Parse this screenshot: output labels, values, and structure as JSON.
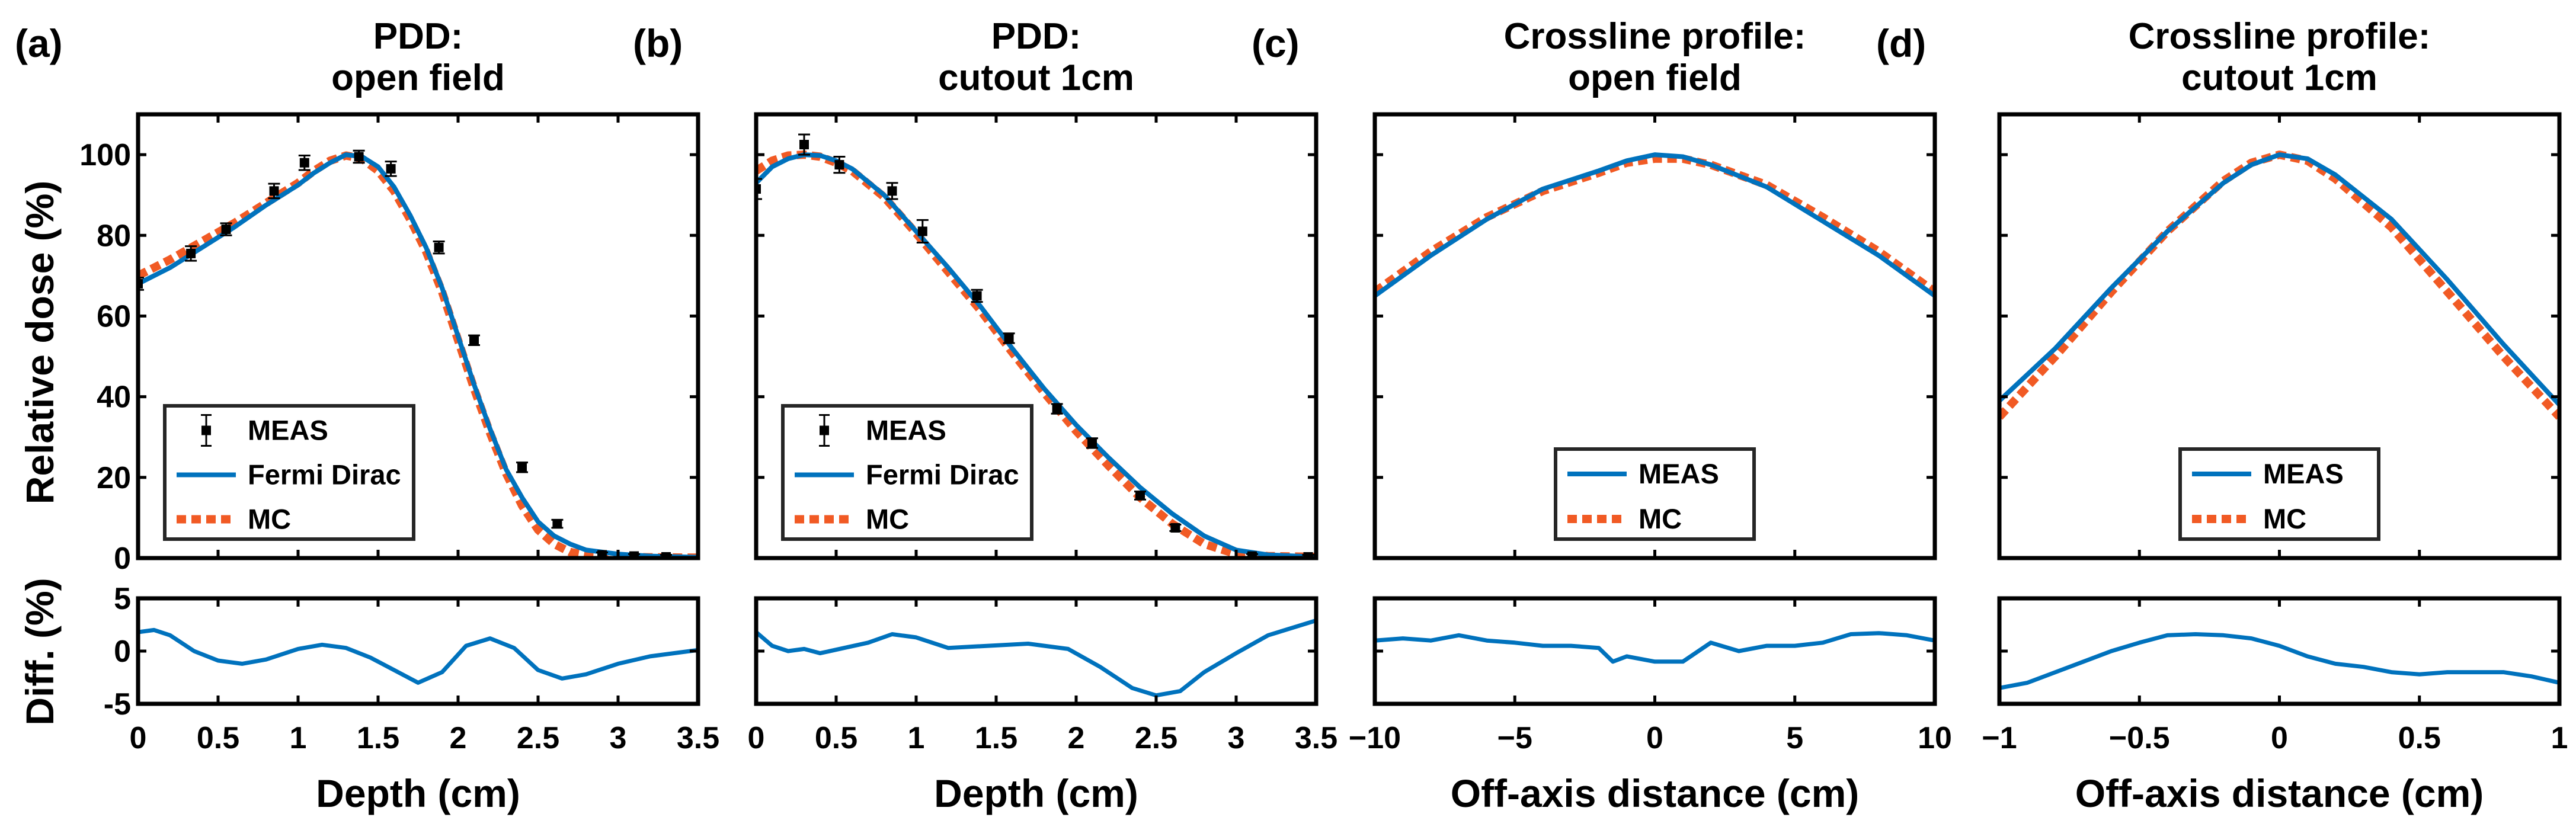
{
  "colors": {
    "fermi": "#0072BD",
    "mc": "#F15A24",
    "meas": "#000000"
  },
  "y_label_main": "Relative dose (%)",
  "y_label_diff": "Diff. (%)",
  "chart_data": [
    {
      "type": "line",
      "letter": "(a)",
      "title": [
        "PDD:",
        "open field"
      ],
      "xlabel": "Depth (cm)",
      "xlim": [
        0,
        3.5
      ],
      "xticks": [
        0,
        0.5,
        1,
        1.5,
        2,
        2.5,
        3,
        3.5
      ],
      "xtick_labels": [
        "0",
        "0.5",
        "1",
        "1.5",
        "2",
        "2.5",
        "3",
        "3.5"
      ],
      "ylim": [
        0,
        110
      ],
      "yticks": [
        0,
        20,
        40,
        60,
        80,
        100
      ],
      "ytick_labels": [
        "0",
        "20",
        "40",
        "60",
        "80",
        "100"
      ],
      "diff_ylim": [
        -5,
        5
      ],
      "diff_yticks": [
        -5,
        0,
        5
      ],
      "diff_ytick_labels": [
        "-5",
        "0",
        "5"
      ],
      "legend": {
        "position": "lower-left",
        "entries": [
          "MEAS",
          "Fermi Dirac",
          "MC"
        ]
      },
      "series": [
        {
          "name": "Fermi Dirac",
          "x": [
            0,
            0.2,
            0.4,
            0.6,
            0.8,
            1,
            1.1,
            1.2,
            1.3,
            1.4,
            1.5,
            1.6,
            1.7,
            1.8,
            1.9,
            2,
            2.1,
            2.2,
            2.3,
            2.4,
            2.5,
            2.6,
            2.7,
            2.8,
            2.9,
            3,
            3.2,
            3.5
          ],
          "y": [
            68,
            72,
            77,
            82,
            87.5,
            92.5,
            95.5,
            98,
            100,
            99.5,
            97,
            92,
            85,
            77,
            67,
            55,
            43,
            32,
            22,
            15,
            9,
            5.5,
            3.5,
            2,
            1.5,
            1,
            0.5,
            0.2
          ]
        },
        {
          "name": "MC",
          "x": [
            0,
            0.2,
            0.4,
            0.6,
            0.8,
            1,
            1.1,
            1.2,
            1.3,
            1.4,
            1.5,
            1.6,
            1.7,
            1.8,
            1.9,
            2,
            2.1,
            2.2,
            2.3,
            2.4,
            2.5,
            2.6,
            2.7,
            2.8,
            2.9,
            3,
            3.2,
            3.5
          ],
          "y": [
            70,
            74,
            78.5,
            83,
            88,
            93,
            96,
            98.5,
            99.8,
            99,
            96,
            91,
            84,
            76,
            66,
            54,
            42,
            31,
            21,
            13,
            7,
            3.5,
            1.5,
            0.8,
            0.5,
            0.3,
            0.2,
            0.1
          ]
        },
        {
          "name": "MEAS",
          "x": [
            0,
            0.33,
            0.55,
            0.85,
            1.04,
            1.38,
            1.58,
            1.88,
            2.1,
            2.4,
            2.62,
            2.9,
            3.1,
            3.3
          ],
          "y": [
            68,
            75.5,
            81.5,
            91,
            98,
            99.5,
            96.5,
            77,
            54,
            22.5,
            8.5,
            0.8,
            0.5,
            0.3
          ],
          "err": [
            1.5,
            1.8,
            1.5,
            1.8,
            1.8,
            1.5,
            1.8,
            1.5,
            1.2,
            1.2,
            1,
            0.6,
            0.5,
            0.5
          ]
        }
      ],
      "diff": {
        "name": "Diff",
        "x": [
          0,
          0.1,
          0.2,
          0.35,
          0.5,
          0.65,
          0.8,
          1,
          1.15,
          1.3,
          1.45,
          1.6,
          1.75,
          1.9,
          2.05,
          2.2,
          2.35,
          2.5,
          2.65,
          2.8,
          3,
          3.2,
          3.5
        ],
        "y": [
          1.8,
          2,
          1.5,
          0,
          -0.9,
          -1.2,
          -0.8,
          0.2,
          0.6,
          0.3,
          -0.6,
          -1.8,
          -3,
          -2,
          0.5,
          1.2,
          0.3,
          -1.8,
          -2.6,
          -2.2,
          -1.2,
          -0.5,
          0.1
        ]
      }
    },
    {
      "type": "line",
      "letter": "(b)",
      "title": [
        "PDD:",
        "cutout 1cm"
      ],
      "xlabel": "Depth (cm)",
      "xlim": [
        0,
        3.5
      ],
      "xticks": [
        0,
        0.5,
        1,
        1.5,
        2,
        2.5,
        3,
        3.5
      ],
      "xtick_labels": [
        "0",
        "0.5",
        "1",
        "1.5",
        "2",
        "2.5",
        "3",
        "3.5"
      ],
      "ylim": [
        0,
        110
      ],
      "yticks": [
        0,
        20,
        40,
        60,
        80,
        100
      ],
      "ytick_labels": [],
      "diff_ylim": [
        -5,
        5
      ],
      "diff_yticks": [
        -5,
        0,
        5
      ],
      "diff_ytick_labels": [],
      "legend": {
        "position": "lower-left",
        "entries": [
          "MEAS",
          "Fermi Dirac",
          "MC"
        ]
      },
      "series": [
        {
          "name": "Fermi Dirac",
          "x": [
            0,
            0.1,
            0.2,
            0.3,
            0.4,
            0.5,
            0.6,
            0.8,
            1,
            1.2,
            1.4,
            1.6,
            1.8,
            2,
            2.2,
            2.4,
            2.6,
            2.8,
            3,
            3.2,
            3.5
          ],
          "y": [
            93,
            97,
            99,
            100,
            99.8,
            98.5,
            96.5,
            90,
            81,
            72,
            62.5,
            52,
            42,
            33,
            25,
            17.5,
            11,
            5.5,
            2,
            0.8,
            0.3
          ]
        },
        {
          "name": "MC",
          "x": [
            0,
            0.1,
            0.2,
            0.3,
            0.4,
            0.5,
            0.6,
            0.8,
            1,
            1.2,
            1.4,
            1.6,
            1.8,
            2,
            2.2,
            2.4,
            2.6,
            2.8,
            3,
            3.2,
            3.5
          ],
          "y": [
            96,
            98.5,
            99.8,
            100,
            99.5,
            98,
            96,
            89.5,
            80.5,
            71,
            61.5,
            51,
            41,
            31.5,
            23,
            15,
            8.5,
            3.5,
            1,
            0.5,
            0.3
          ]
        },
        {
          "name": "MEAS",
          "x": [
            0,
            0.3,
            0.52,
            0.85,
            1.04,
            1.38,
            1.58,
            1.88,
            2.1,
            2.4,
            2.62,
            3.1,
            3.45
          ],
          "y": [
            91.5,
            102.5,
            97.5,
            91,
            81,
            65,
            54.5,
            37,
            28.5,
            15.5,
            7.5,
            0.5,
            0.3
          ],
          "err": [
            2.5,
            2.5,
            2,
            2,
            2.8,
            1.5,
            1.2,
            1.2,
            1.2,
            1,
            0.8,
            0.5,
            0.5
          ]
        }
      ],
      "diff": {
        "name": "Diff",
        "x": [
          0,
          0.1,
          0.2,
          0.3,
          0.4,
          0.55,
          0.7,
          0.85,
          1,
          1.2,
          1.45,
          1.7,
          1.95,
          2.15,
          2.35,
          2.5,
          2.65,
          2.8,
          3,
          3.2,
          3.5
        ],
        "y": [
          1.8,
          0.5,
          0,
          0.2,
          -0.2,
          0.3,
          0.8,
          1.6,
          1.3,
          0.3,
          0.5,
          0.7,
          0.2,
          -1.5,
          -3.5,
          -4.2,
          -3.8,
          -2,
          -0.2,
          1.5,
          2.9
        ]
      }
    },
    {
      "type": "line",
      "letter": "(c)",
      "title": [
        "Crossline profile:",
        "open field"
      ],
      "xlabel": "Off-axis distance (cm)",
      "xlim": [
        -10,
        10
      ],
      "xticks": [
        -10,
        -5,
        0,
        5,
        10
      ],
      "xtick_labels": [
        "−10",
        "−5",
        "0",
        "5",
        "10"
      ],
      "ylim": [
        0,
        110
      ],
      "yticks": [
        0,
        20,
        40,
        60,
        80,
        100
      ],
      "ytick_labels": [],
      "diff_ylim": [
        -5,
        5
      ],
      "diff_yticks": [
        -5,
        0,
        5
      ],
      "diff_ytick_labels": [],
      "legend": {
        "position": "lower-center",
        "entries": [
          "MEAS",
          "MC"
        ]
      },
      "series": [
        {
          "name": "MEAS",
          "x": [
            -10,
            -8,
            -6,
            -4,
            -2,
            -1,
            0,
            1,
            2,
            4,
            6,
            8,
            10
          ],
          "y": [
            65,
            75,
            84,
            91.5,
            96,
            98.5,
            100,
            99.5,
            97.5,
            92,
            83.5,
            75,
            65
          ]
        },
        {
          "name": "MC",
          "x": [
            -10,
            -8,
            -6,
            -4,
            -2,
            -1,
            0,
            1,
            2,
            4,
            6,
            8,
            10
          ],
          "y": [
            66,
            76,
            84.5,
            91,
            95.5,
            98,
            99,
            99,
            97.5,
            92.5,
            84.5,
            76,
            66
          ]
        }
      ],
      "diff": {
        "name": "Diff",
        "x": [
          -10,
          -9,
          -8,
          -7,
          -6,
          -5,
          -4,
          -3,
          -2,
          -1.5,
          -1,
          0,
          1,
          2,
          3,
          4,
          5,
          6,
          7,
          8,
          9,
          10
        ],
        "y": [
          1,
          1.2,
          1,
          1.5,
          1,
          0.8,
          0.5,
          0.5,
          0.3,
          -1,
          -0.5,
          -1,
          -1,
          0.8,
          0,
          0.5,
          0.5,
          0.8,
          1.6,
          1.7,
          1.5,
          1
        ]
      }
    },
    {
      "type": "line",
      "letter": "(d)",
      "title": [
        "Crossline profile:",
        "cutout 1cm"
      ],
      "xlabel": "Off-axis distance (cm)",
      "xlim": [
        -1,
        1
      ],
      "xticks": [
        -1,
        -0.5,
        0,
        0.5,
        1
      ],
      "xtick_labels": [
        "−1",
        "−0.5",
        "0",
        "0.5",
        "1"
      ],
      "ylim": [
        0,
        110
      ],
      "yticks": [
        0,
        20,
        40,
        60,
        80,
        100
      ],
      "ytick_labels": [],
      "diff_ylim": [
        -5,
        5
      ],
      "diff_yticks": [
        -5,
        0,
        5
      ],
      "diff_ytick_labels": [],
      "legend": {
        "position": "lower-center",
        "entries": [
          "MEAS",
          "MC"
        ]
      },
      "series": [
        {
          "name": "MEAS",
          "x": [
            -1,
            -0.8,
            -0.6,
            -0.4,
            -0.2,
            -0.1,
            0,
            0.1,
            0.2,
            0.4,
            0.6,
            0.8,
            1
          ],
          "y": [
            39,
            52,
            67,
            81,
            93,
            97.5,
            100,
            99,
            95,
            84,
            69,
            53,
            38
          ]
        },
        {
          "name": "MC",
          "x": [
            -1,
            -0.8,
            -0.6,
            -0.4,
            -0.2,
            -0.1,
            0,
            0.1,
            0.2,
            0.4,
            0.6,
            0.8,
            1
          ],
          "y": [
            35,
            50,
            66,
            81,
            93.5,
            98,
            100,
            98.5,
            94,
            82,
            66,
            50,
            35
          ]
        }
      ],
      "diff": {
        "name": "Diff",
        "x": [
          -1,
          -0.9,
          -0.8,
          -0.7,
          -0.6,
          -0.5,
          -0.4,
          -0.3,
          -0.2,
          -0.1,
          0,
          0.1,
          0.2,
          0.3,
          0.4,
          0.5,
          0.6,
          0.7,
          0.8,
          0.9,
          1
        ],
        "y": [
          -3.5,
          -3,
          -2,
          -1,
          0,
          0.8,
          1.5,
          1.6,
          1.5,
          1.2,
          0.5,
          -0.5,
          -1.2,
          -1.5,
          -2,
          -2.2,
          -2,
          -2,
          -2,
          -2.4,
          -3
        ]
      }
    }
  ]
}
